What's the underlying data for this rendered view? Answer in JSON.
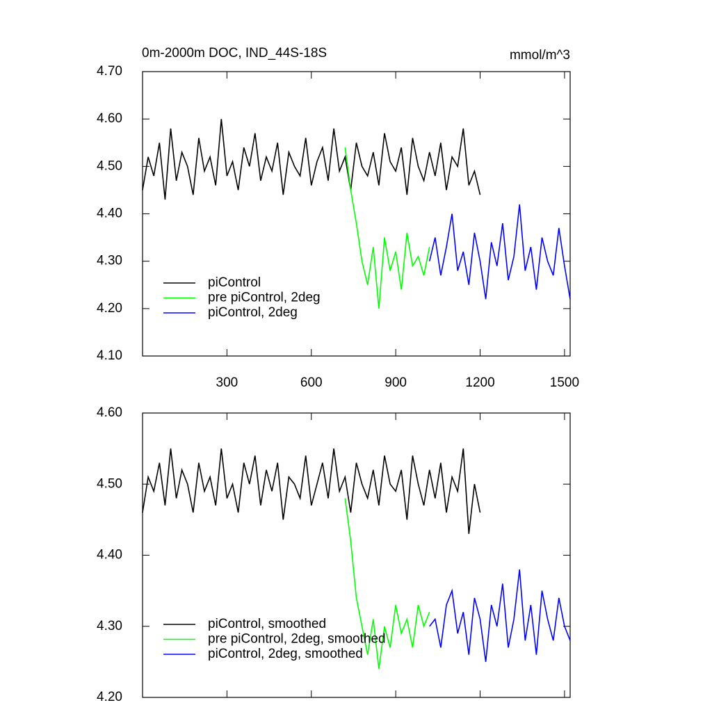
{
  "chart_data": [
    {
      "type": "line",
      "title": "0m-2000m DOC, IND_44S-18S",
      "units": "mmol/m^3",
      "xlim": [
        0,
        1520
      ],
      "xticks": [
        300,
        600,
        900,
        1200,
        1500
      ],
      "ylim": [
        4.1,
        4.7
      ],
      "yticks": [
        {
          "value": 4.1,
          "label": "4.10"
        },
        {
          "value": 4.2,
          "label": "4.20"
        },
        {
          "value": 4.3,
          "label": "4.30"
        },
        {
          "value": 4.4,
          "label": "4.40"
        },
        {
          "value": 4.5,
          "label": "4.50"
        },
        {
          "value": 4.6,
          "label": "4.60"
        },
        {
          "value": 4.7,
          "label": "4.70"
        }
      ],
      "legend": "lower left",
      "series": [
        {
          "name": "piControl",
          "color": "#000000",
          "x": [
            0,
            20,
            40,
            60,
            80,
            100,
            120,
            140,
            160,
            180,
            200,
            220,
            240,
            260,
            280,
            300,
            320,
            340,
            360,
            380,
            400,
            420,
            440,
            460,
            480,
            500,
            520,
            540,
            560,
            580,
            600,
            620,
            640,
            660,
            680,
            700,
            720,
            740,
            760,
            780,
            800,
            820,
            840,
            860,
            880,
            900,
            920,
            940,
            960,
            980,
            1000,
            1020,
            1040,
            1060,
            1080,
            1100,
            1120,
            1140,
            1160,
            1180,
            1200
          ],
          "values": [
            4.45,
            4.52,
            4.48,
            4.55,
            4.43,
            4.58,
            4.47,
            4.53,
            4.5,
            4.44,
            4.56,
            4.49,
            4.52,
            4.46,
            4.6,
            4.48,
            4.51,
            4.45,
            4.54,
            4.5,
            4.57,
            4.47,
            4.52,
            4.49,
            4.55,
            4.44,
            4.53,
            4.5,
            4.48,
            4.56,
            4.46,
            4.51,
            4.54,
            4.47,
            4.58,
            4.49,
            4.52,
            4.45,
            4.55,
            4.5,
            4.48,
            4.53,
            4.46,
            4.57,
            4.51,
            4.49,
            4.54,
            4.44,
            4.56,
            4.5,
            4.47,
            4.53,
            4.48,
            4.55,
            4.45,
            4.52,
            4.5,
            4.58,
            4.46,
            4.49,
            4.44
          ]
        },
        {
          "name": "pre piControl, 2deg",
          "color": "#00ff00",
          "x": [
            720,
            740,
            760,
            780,
            800,
            820,
            840,
            860,
            880,
            900,
            920,
            940,
            960,
            980,
            1000,
            1020
          ],
          "values": [
            4.54,
            4.45,
            4.38,
            4.3,
            4.25,
            4.33,
            4.2,
            4.35,
            4.28,
            4.32,
            4.24,
            4.36,
            4.29,
            4.31,
            4.27,
            4.33
          ]
        },
        {
          "name": "piControl, 2deg",
          "color": "#0000ff",
          "x": [
            1020,
            1040,
            1060,
            1080,
            1100,
            1120,
            1140,
            1160,
            1180,
            1200,
            1220,
            1240,
            1260,
            1280,
            1300,
            1320,
            1340,
            1360,
            1380,
            1400,
            1420,
            1440,
            1460,
            1480,
            1500,
            1520
          ],
          "values": [
            4.3,
            4.35,
            4.27,
            4.33,
            4.4,
            4.28,
            4.32,
            4.25,
            4.36,
            4.3,
            4.22,
            4.34,
            4.29,
            4.38,
            4.26,
            4.31,
            4.42,
            4.28,
            4.33,
            4.24,
            4.35,
            4.3,
            4.27,
            4.37,
            4.29,
            4.22
          ]
        }
      ]
    },
    {
      "type": "line",
      "xlim": [
        0,
        1520
      ],
      "ylim": [
        4.2,
        4.6
      ],
      "yticks": [
        {
          "value": 4.2,
          "label": "4.20"
        },
        {
          "value": 4.3,
          "label": "4.30"
        },
        {
          "value": 4.4,
          "label": "4.40"
        },
        {
          "value": 4.5,
          "label": "4.50"
        },
        {
          "value": 4.6,
          "label": "4.60"
        }
      ],
      "legend": "lower left",
      "series": [
        {
          "name": "piControl, smoothed",
          "color": "#000000",
          "x": [
            0,
            20,
            40,
            60,
            80,
            100,
            120,
            140,
            160,
            180,
            200,
            220,
            240,
            260,
            280,
            300,
            320,
            340,
            360,
            380,
            400,
            420,
            440,
            460,
            480,
            500,
            520,
            540,
            560,
            580,
            600,
            620,
            640,
            660,
            680,
            700,
            720,
            740,
            760,
            780,
            800,
            820,
            840,
            860,
            880,
            900,
            920,
            940,
            960,
            980,
            1000,
            1020,
            1040,
            1060,
            1080,
            1100,
            1120,
            1140,
            1160,
            1180,
            1200
          ],
          "values": [
            4.46,
            4.51,
            4.49,
            4.53,
            4.47,
            4.55,
            4.48,
            4.52,
            4.5,
            4.46,
            4.53,
            4.49,
            4.51,
            4.47,
            4.55,
            4.48,
            4.5,
            4.46,
            4.53,
            4.5,
            4.54,
            4.47,
            4.52,
            4.49,
            4.53,
            4.45,
            4.51,
            4.5,
            4.48,
            4.54,
            4.47,
            4.5,
            4.53,
            4.48,
            4.55,
            4.49,
            4.51,
            4.46,
            4.53,
            4.5,
            4.48,
            4.52,
            4.47,
            4.54,
            4.5,
            4.49,
            4.52,
            4.45,
            4.54,
            4.5,
            4.47,
            4.52,
            4.48,
            4.53,
            4.46,
            4.51,
            4.49,
            4.55,
            4.43,
            4.5,
            4.46
          ]
        },
        {
          "name": "pre piControl, 2deg, smoothed",
          "color": "#00ff00",
          "x": [
            720,
            740,
            760,
            780,
            800,
            820,
            840,
            860,
            880,
            900,
            920,
            940,
            960,
            980,
            1000,
            1020
          ],
          "values": [
            4.48,
            4.42,
            4.34,
            4.3,
            4.26,
            4.31,
            4.24,
            4.3,
            4.27,
            4.33,
            4.29,
            4.31,
            4.27,
            4.33,
            4.3,
            4.32
          ]
        },
        {
          "name": "piControl, 2deg, smoothed",
          "color": "#0000ff",
          "x": [
            1020,
            1040,
            1060,
            1080,
            1100,
            1120,
            1140,
            1160,
            1180,
            1200,
            1220,
            1240,
            1260,
            1280,
            1300,
            1320,
            1340,
            1360,
            1380,
            1400,
            1420,
            1440,
            1460,
            1480,
            1500,
            1520
          ],
          "values": [
            4.3,
            4.31,
            4.27,
            4.33,
            4.35,
            4.29,
            4.32,
            4.26,
            4.34,
            4.31,
            4.25,
            4.33,
            4.3,
            4.36,
            4.27,
            4.31,
            4.38,
            4.28,
            4.33,
            4.26,
            4.35,
            4.31,
            4.28,
            4.34,
            4.3,
            4.28
          ]
        }
      ]
    }
  ]
}
